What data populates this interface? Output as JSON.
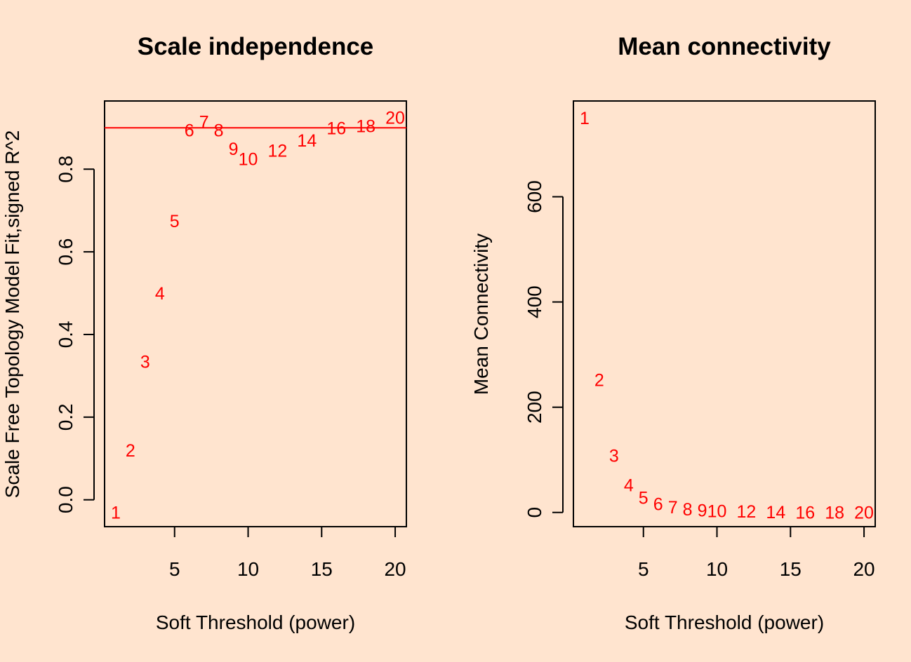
{
  "background_color": "#FFE4CF",
  "point_color": "#FF0000",
  "chart_data": [
    {
      "type": "scatter",
      "title": "Scale independence",
      "xlabel": "Soft Threshold (power)",
      "ylabel": "Scale Free Topology Model Fit,signed R^2",
      "xlim": [
        0.24,
        20.76
      ],
      "ylim": [
        -0.065,
        0.965
      ],
      "xticks": [
        5,
        10,
        15,
        20
      ],
      "yticks": [
        0.0,
        0.2,
        0.4,
        0.6,
        0.8
      ],
      "ytick_labels": [
        "0.0",
        "0.2",
        "0.4",
        "0.6",
        "0.8"
      ],
      "grid": false,
      "marker": "text-label",
      "reference_line": {
        "y": 0.9,
        "color": "#FF0000"
      },
      "points": [
        {
          "x": 1,
          "y": -0.03,
          "label": "1"
        },
        {
          "x": 2,
          "y": 0.12,
          "label": "2"
        },
        {
          "x": 3,
          "y": 0.335,
          "label": "3"
        },
        {
          "x": 4,
          "y": 0.5,
          "label": "4"
        },
        {
          "x": 5,
          "y": 0.675,
          "label": "5"
        },
        {
          "x": 6,
          "y": 0.895,
          "label": "6"
        },
        {
          "x": 7,
          "y": 0.915,
          "label": "7"
        },
        {
          "x": 8,
          "y": 0.895,
          "label": "8"
        },
        {
          "x": 9,
          "y": 0.85,
          "label": "9"
        },
        {
          "x": 10,
          "y": 0.825,
          "label": "10"
        },
        {
          "x": 12,
          "y": 0.845,
          "label": "12"
        },
        {
          "x": 14,
          "y": 0.87,
          "label": "14"
        },
        {
          "x": 16,
          "y": 0.9,
          "label": "16"
        },
        {
          "x": 18,
          "y": 0.905,
          "label": "18"
        },
        {
          "x": 20,
          "y": 0.925,
          "label": "20"
        }
      ]
    },
    {
      "type": "scatter",
      "title": "Mean connectivity",
      "xlabel": "Soft Threshold (power)",
      "ylabel": "Mean Connectivity",
      "xlim": [
        0.24,
        20.76
      ],
      "ylim": [
        -27,
        782
      ],
      "xticks": [
        5,
        10,
        15,
        20
      ],
      "yticks": [
        0,
        200,
        400,
        600
      ],
      "ytick_labels": [
        "0",
        "200",
        "400",
        "600"
      ],
      "grid": false,
      "marker": "text-label",
      "points": [
        {
          "x": 1,
          "y": 750,
          "label": "1"
        },
        {
          "x": 2,
          "y": 252,
          "label": "2"
        },
        {
          "x": 3,
          "y": 108,
          "label": "3"
        },
        {
          "x": 4,
          "y": 52,
          "label": "4"
        },
        {
          "x": 5,
          "y": 28,
          "label": "5"
        },
        {
          "x": 6,
          "y": 16,
          "label": "6"
        },
        {
          "x": 7,
          "y": 10,
          "label": "7"
        },
        {
          "x": 8,
          "y": 6,
          "label": "8"
        },
        {
          "x": 9,
          "y": 4,
          "label": "9"
        },
        {
          "x": 10,
          "y": 3,
          "label": "10"
        },
        {
          "x": 12,
          "y": 2,
          "label": "12"
        },
        {
          "x": 14,
          "y": 1,
          "label": "14"
        },
        {
          "x": 16,
          "y": 0.5,
          "label": "16"
        },
        {
          "x": 18,
          "y": 0.3,
          "label": "18"
        },
        {
          "x": 20,
          "y": 0.2,
          "label": "20"
        }
      ]
    }
  ]
}
